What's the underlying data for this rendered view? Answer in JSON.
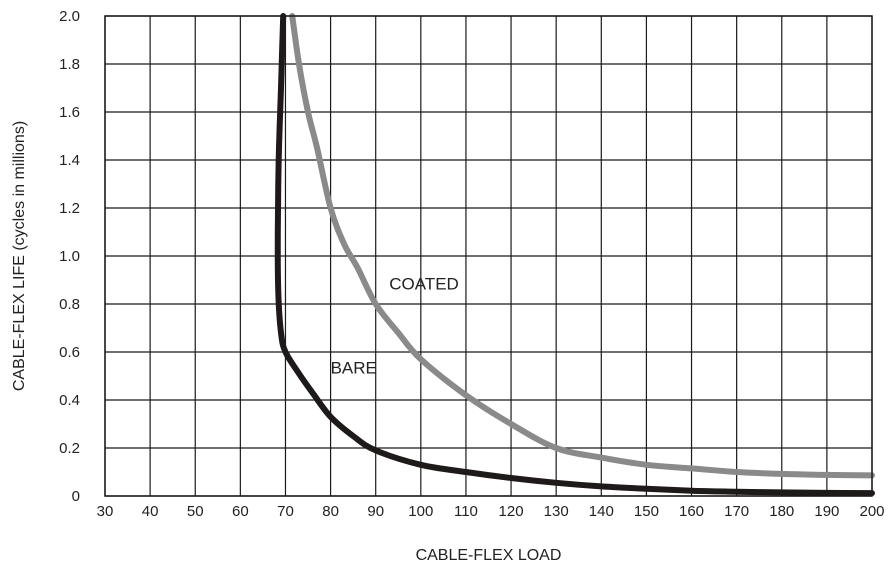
{
  "chart_data": {
    "type": "line",
    "title": "",
    "xlabel": "CABLE-FLEX LOAD",
    "ylabel": "CABLE-FLEX LIFE (cycles in millions)",
    "xlim": [
      30,
      200
    ],
    "ylim": [
      0,
      2.0
    ],
    "x_ticks": [
      30,
      40,
      50,
      60,
      70,
      80,
      90,
      100,
      110,
      120,
      130,
      140,
      150,
      160,
      170,
      180,
      190,
      200
    ],
    "y_ticks": [
      0,
      0.2,
      0.4,
      0.6,
      0.8,
      1.0,
      1.2,
      1.4,
      1.6,
      1.8,
      2.0
    ],
    "x_tick_labels": [
      "30",
      "40",
      "50",
      "60",
      "70",
      "80",
      "90",
      "100",
      "110",
      "120",
      "130",
      "140",
      "150",
      "160",
      "170",
      "180",
      "190",
      "200"
    ],
    "y_tick_labels": [
      "0",
      "0.2",
      "0.4",
      "0.6",
      "0.8",
      "1.0",
      "1.2",
      "1.4",
      "1.6",
      "1.8",
      "2.0"
    ],
    "grid": true,
    "series": [
      {
        "name": "BARE",
        "color": "#1f1a1a",
        "points": [
          [
            69.5,
            2.0
          ],
          [
            69.0,
            1.7
          ],
          [
            68.5,
            1.4
          ],
          [
            68.3,
            1.1
          ],
          [
            68.4,
            0.85
          ],
          [
            69,
            0.68
          ],
          [
            70,
            0.6
          ],
          [
            73,
            0.51
          ],
          [
            76,
            0.43
          ],
          [
            80,
            0.33
          ],
          [
            85,
            0.25
          ],
          [
            90,
            0.19
          ],
          [
            100,
            0.13
          ],
          [
            110,
            0.1
          ],
          [
            120,
            0.075
          ],
          [
            130,
            0.055
          ],
          [
            140,
            0.04
          ],
          [
            150,
            0.03
          ],
          [
            160,
            0.022
          ],
          [
            170,
            0.018
          ],
          [
            180,
            0.015
          ],
          [
            190,
            0.013
          ],
          [
            200,
            0.012
          ]
        ]
      },
      {
        "name": "COATED",
        "color": "#8a8a8a",
        "points": [
          [
            71.5,
            2.0
          ],
          [
            73,
            1.8
          ],
          [
            75,
            1.6
          ],
          [
            77,
            1.45
          ],
          [
            80,
            1.2
          ],
          [
            83,
            1.05
          ],
          [
            86,
            0.95
          ],
          [
            90,
            0.8
          ],
          [
            95,
            0.68
          ],
          [
            100,
            0.57
          ],
          [
            110,
            0.42
          ],
          [
            120,
            0.3
          ],
          [
            130,
            0.2
          ],
          [
            140,
            0.16
          ],
          [
            150,
            0.13
          ],
          [
            160,
            0.115
          ],
          [
            170,
            0.1
          ],
          [
            180,
            0.092
          ],
          [
            190,
            0.088
          ],
          [
            200,
            0.086
          ]
        ]
      }
    ],
    "labels": [
      {
        "text": "COATED",
        "series": "COATED",
        "x": 93,
        "y": 0.86
      },
      {
        "text": "BARE",
        "series": "BARE",
        "x": 80,
        "y": 0.51
      }
    ]
  }
}
